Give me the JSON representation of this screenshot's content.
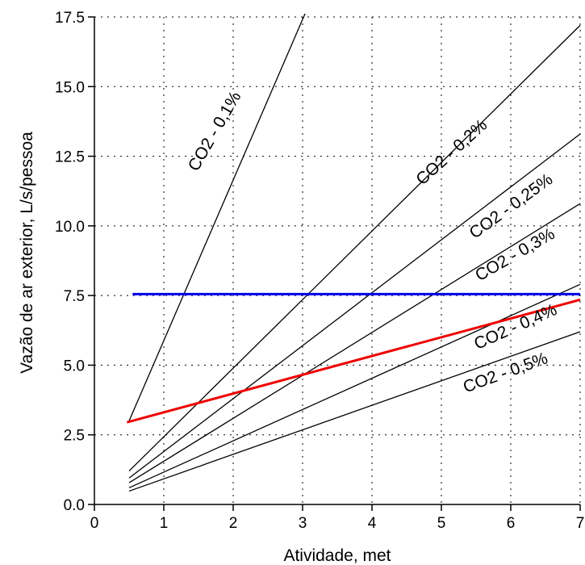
{
  "chart_data": {
    "type": "line",
    "xlabel": "Atividade, met",
    "ylabel": "Vazão de ar exterior, L/s/pessoa",
    "xlim": [
      0,
      7
    ],
    "ylim": [
      0,
      17.5
    ],
    "x_ticks": [
      "0",
      "1",
      "2",
      "3",
      "4",
      "5",
      "6",
      "7"
    ],
    "y_ticks": [
      "0.0",
      "2.5",
      "5.0",
      "7.5",
      "10.0",
      "12.5",
      "15.0",
      "17.5"
    ],
    "grid": true,
    "series": [
      {
        "name": "CO2 - 0,1%",
        "color": "#000000",
        "x": [
          0.5,
          3.05
        ],
        "y": [
          3.0,
          17.7
        ]
      },
      {
        "name": "CO2 - 0,2%",
        "color": "#000000",
        "x": [
          0.5,
          7.0
        ],
        "y": [
          1.2,
          17.2
        ]
      },
      {
        "name": "CO2 - 0,25%",
        "color": "#000000",
        "x": [
          0.5,
          7.0
        ],
        "y": [
          0.95,
          13.3
        ]
      },
      {
        "name": "CO2 - 0,3%",
        "color": "#000000",
        "x": [
          0.5,
          7.0
        ],
        "y": [
          0.78,
          10.8
        ]
      },
      {
        "name": "CO2 - 0,4%",
        "color": "#000000",
        "x": [
          0.5,
          7.0
        ],
        "y": [
          0.6,
          7.9
        ]
      },
      {
        "name": "CO2 - 0,5%",
        "color": "#000000",
        "x": [
          0.5,
          7.0
        ],
        "y": [
          0.48,
          6.2
        ]
      },
      {
        "color": "#0000ee",
        "x": [
          0.55,
          7.0
        ],
        "y": [
          7.55,
          7.55
        ]
      },
      {
        "color": "#ee0000",
        "x": [
          0.47,
          7.0
        ],
        "y": [
          2.95,
          7.35
        ]
      }
    ],
    "line_labels": [
      {
        "text": "CO2 - 0,1%",
        "x": 1.8,
        "y": 13.3,
        "angle": -60
      },
      {
        "text": "CO2 - 0,2%",
        "x": 5.2,
        "y": 12.5,
        "angle": -42
      },
      {
        "text": "CO2 - 0,25%",
        "x": 6.05,
        "y": 10.55,
        "angle": -36
      },
      {
        "text": "CO2 - 0,3%",
        "x": 6.1,
        "y": 8.8,
        "angle": -30
      },
      {
        "text": "CO2 - 0,4%",
        "x": 6.1,
        "y": 6.2,
        "angle": -24
      },
      {
        "text": "CO2 - 0,5%",
        "x": 5.95,
        "y": 4.55,
        "angle": -20
      }
    ]
  }
}
